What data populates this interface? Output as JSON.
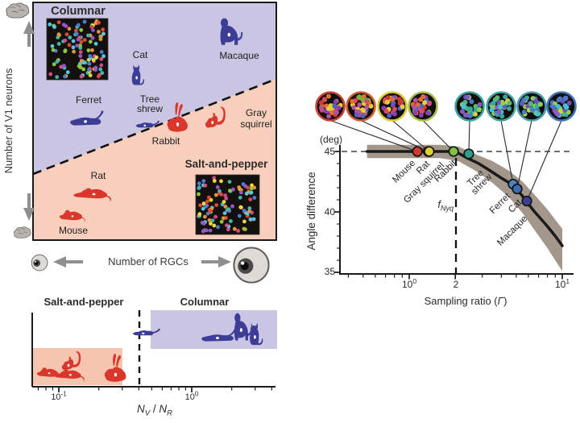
{
  "colors": {
    "navy": "#3d3c96",
    "red": "#d9372b",
    "columnar_text": "#4743a8",
    "salt_text": "#e2432e",
    "purple_bg": "#c9c5e3",
    "salmon_bg": "#f8cfbd",
    "salmon_box": "#f6c5b0",
    "band": "#a3968a",
    "curve": "#1a1a1a",
    "axis": "#1a1a1a",
    "text_dark": "#2b2b2b",
    "arrow_gray": "#8f8f8f",
    "brain_gray": "#b9b3ad",
    "eye_fill": "#dedad6"
  },
  "dot_palettes": {
    "map": [
      "#d94a3a",
      "#e8913a",
      "#ead83e",
      "#8bc83f",
      "#43b8a8",
      "#4a7fd0",
      "#9a55cc",
      "#d24a86",
      "#56c8e0"
    ],
    "warm": [
      "#cf3a2e",
      "#e07030",
      "#b84fa0",
      "#4f63c8",
      "#6fb842",
      "#e3cf3a",
      "#8a3fb0",
      "#d44a6a"
    ],
    "cool": [
      "#48c0d8",
      "#52ba72",
      "#8fce52",
      "#4a7ac8",
      "#8a5ac4",
      "#3aa89e",
      "#c8d44a",
      "#6a55c0"
    ]
  },
  "panel_map": {
    "columnar": "Columnar",
    "salt": "Salt-and-pepper",
    "y_axis": "Number of V1 neurons",
    "x_axis": "Number of RGCs",
    "labels": {
      "macaque": "Macaque",
      "cat": "Cat",
      "ferret": "Ferret",
      "tree1": "Tree",
      "tree2": "shrew",
      "rabbit": "Rabbit",
      "gray1": "Gray",
      "gray2": "squirrel",
      "rat": "Rat",
      "mouse": "Mouse"
    }
  },
  "panel_curve": {
    "deg": "(deg)",
    "ylabel": "Angle difference",
    "yticks": {
      "y45": "45",
      "y40": "40",
      "y35": "35"
    },
    "xticks": {
      "x1_base": "10",
      "x1_exp": "0",
      "x2": "2",
      "x3_base": "10",
      "x3_exp": "1"
    },
    "xlabel": {
      "pre": "Sampling ratio (",
      "gamma": "Γ",
      "post": ")"
    },
    "fnyq": {
      "f": "f",
      "sub": "Nyq"
    },
    "pt_labels": {
      "mouse": "Mouse",
      "rat": "Rat",
      "gray_squirrel": "Gray squirrel",
      "rabbit": "Rabbit",
      "tree1": "Tree",
      "tree2": "shrew",
      "ferret": "Ferret",
      "cat": "Cat",
      "macaque": "Macaque"
    }
  },
  "panel_ratio": {
    "salt": "Salt-and-pepper",
    "columnar": "Columnar",
    "t1_base": "10",
    "t1_exp": "-1",
    "t2_base": "10",
    "t2_exp": "0",
    "xlabel": {
      "n1": "N",
      "s1": "V",
      "mid": " / ",
      "n2": "N",
      "s2": "R"
    }
  },
  "chart_data": [
    {
      "id": "v1-neurons-vs-rgcs-map",
      "type": "scatter",
      "xlabel": "Number of RGCs",
      "ylabel": "Number of V1 neurons",
      "regions": [
        {
          "name": "Columnar",
          "color": "#c9c5e3",
          "side": "upper-left of dashed boundary"
        },
        {
          "name": "Salt-and-pepper",
          "color": "#f8cfbd",
          "side": "lower-right of dashed boundary"
        }
      ],
      "points": [
        {
          "name": "Macaque",
          "group": "columnar",
          "x_rel": 0.82,
          "y_rel": 0.9
        },
        {
          "name": "Cat",
          "group": "columnar",
          "x_rel": 0.44,
          "y_rel": 0.7
        },
        {
          "name": "Ferret",
          "group": "columnar",
          "x_rel": 0.22,
          "y_rel": 0.52
        },
        {
          "name": "Tree shrew",
          "group": "columnar",
          "x_rel": 0.48,
          "y_rel": 0.47
        },
        {
          "name": "Rabbit",
          "group": "salt-and-pepper",
          "x_rel": 0.6,
          "y_rel": 0.5
        },
        {
          "name": "Gray squirrel",
          "group": "salt-and-pepper",
          "x_rel": 0.76,
          "y_rel": 0.5
        },
        {
          "name": "Rat",
          "group": "salt-and-pepper",
          "x_rel": 0.25,
          "y_rel": 0.2
        },
        {
          "name": "Mouse",
          "group": "salt-and-pepper",
          "x_rel": 0.17,
          "y_rel": 0.1
        }
      ]
    },
    {
      "id": "angle-difference-vs-sampling-ratio",
      "type": "line+scatter",
      "ylabel": "Angle difference (deg)",
      "xlabel": "Sampling ratio (Γ)",
      "xscale": "log",
      "xlim": [
        0.35,
        10.5
      ],
      "ylim": [
        35,
        45.8
      ],
      "yticks": [
        35,
        40,
        45
      ],
      "xticks": [
        1,
        2,
        10
      ],
      "fnyq_x": 2,
      "dashed_y": 45,
      "points": [
        {
          "name": "Mouse",
          "gamma": 1.13,
          "angle": 45.0,
          "color": "#cf3a2e",
          "ring": "#c94434"
        },
        {
          "name": "Rat",
          "gamma": 1.33,
          "angle": 45.0,
          "color": "#e8e33b",
          "ring": "#d06030"
        },
        {
          "name": "Gray squirrel",
          "gamma": 1.35,
          "angle": 45.0,
          "color": "#ded03a",
          "ring": "#ddc93a"
        },
        {
          "name": "Rabbit",
          "gamma": 1.95,
          "angle": 45.0,
          "color": "#80c243",
          "ring": "#a4c04a"
        },
        {
          "name": "Tree shrew",
          "gamma": 2.45,
          "angle": 44.8,
          "color": "#2f9e8e",
          "ring": "#3aa39b"
        },
        {
          "name": "Ferret",
          "gamma": 4.77,
          "angle": 42.3,
          "color": "#4d82c4",
          "ring": "#46a79e"
        },
        {
          "name": "Cat",
          "gamma": 5.07,
          "angle": 41.9,
          "color": "#3a6cb4",
          "ring": "#4a9fae"
        },
        {
          "name": "Macaque",
          "gamma": 5.87,
          "angle": 40.9,
          "color": "#3d3d92",
          "ring": "#4076b8"
        }
      ],
      "curve": [
        [
          0.53,
          45
        ],
        [
          1,
          45
        ],
        [
          1.6,
          45
        ],
        [
          1.9,
          45
        ],
        [
          2.1,
          44.85
        ],
        [
          2.4,
          44.45
        ],
        [
          2.8,
          44.05
        ],
        [
          3.2,
          43.6
        ],
        [
          4,
          42.8
        ],
        [
          4.8,
          42.2
        ],
        [
          5.5,
          41.3
        ],
        [
          6.5,
          40.1
        ],
        [
          8,
          38.8
        ],
        [
          9,
          38.0
        ],
        [
          10,
          37.2
        ]
      ],
      "band_upper": [
        [
          0.53,
          45.55
        ],
        [
          1.6,
          45.55
        ],
        [
          2.1,
          45.4
        ],
        [
          2.8,
          44.7
        ],
        [
          3.5,
          44.2
        ],
        [
          4.5,
          43.4
        ],
        [
          5.5,
          42.5
        ],
        [
          6.5,
          41.5
        ],
        [
          8,
          40.2
        ],
        [
          10,
          38.6
        ]
      ],
      "band_lower": [
        [
          0.53,
          44.45
        ],
        [
          1.6,
          44.45
        ],
        [
          2.1,
          44.2
        ],
        [
          2.8,
          43.3
        ],
        [
          3.5,
          42.4
        ],
        [
          4.5,
          41.2
        ],
        [
          5.5,
          39.9
        ],
        [
          6.5,
          38.6
        ],
        [
          8,
          37.0
        ],
        [
          10,
          35.1
        ]
      ]
    },
    {
      "id": "nv-nr-ratio-strip",
      "type": "scatter",
      "xlabel": "N_V / N_R",
      "xscale": "log",
      "xticks": [
        0.1,
        1
      ],
      "threshold": 0.4,
      "groups": [
        {
          "name": "Salt-and-pepper",
          "color": "#d9372b",
          "box_range": [
            0.065,
            0.3
          ],
          "animals": [
            "Mouse",
            "Gray squirrel",
            "Rat",
            "Rabbit"
          ]
        },
        {
          "name": "Columnar",
          "color": "#3d3c96",
          "box_range": [
            0.49,
            4.4
          ],
          "animals": [
            "Tree shrew",
            "Ferret",
            "Macaque",
            "Cat"
          ]
        }
      ],
      "points": [
        {
          "name": "Mouse",
          "value": 0.085
        },
        {
          "name": "Gray squirrel",
          "value": 0.11
        },
        {
          "name": "Rat",
          "value": 0.105
        },
        {
          "name": "Rabbit",
          "value": 0.27
        },
        {
          "name": "Tree shrew",
          "value": 0.45
        },
        {
          "name": "Ferret",
          "value": 1.35
        },
        {
          "name": "Macaque",
          "value": 2.1
        },
        {
          "name": "Cat",
          "value": 2.7
        }
      ]
    }
  ]
}
